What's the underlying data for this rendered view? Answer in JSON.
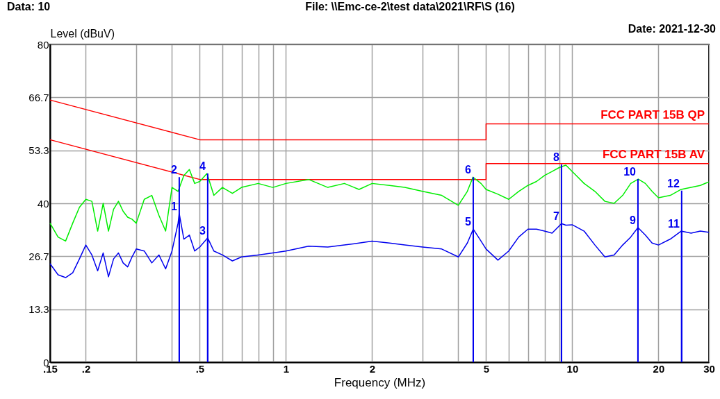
{
  "chart_data": {
    "type": "line",
    "xlabel": "Frequency (MHz)",
    "ylabel": "Level (dBuV)",
    "log": "x",
    "grid": true,
    "marker": "none",
    "line_style": "solid",
    "xlim": [
      0.15,
      30
    ],
    "ylim": [
      0,
      80
    ],
    "xticks": [
      {
        "value": 0.15,
        "label": ".15"
      },
      {
        "value": 0.2,
        "label": ".2"
      },
      {
        "value": 0.3,
        "label": null
      },
      {
        "value": 0.4,
        "label": null
      },
      {
        "value": 0.5,
        "label": ".5"
      },
      {
        "value": 0.6,
        "label": null
      },
      {
        "value": 0.7,
        "label": null
      },
      {
        "value": 0.8,
        "label": null
      },
      {
        "value": 0.9,
        "label": null
      },
      1,
      2,
      {
        "value": 3,
        "label": null
      },
      {
        "value": 4,
        "label": null
      },
      5,
      {
        "value": 6,
        "label": null
      },
      {
        "value": 7,
        "label": null
      },
      {
        "value": 8,
        "label": null
      },
      {
        "value": 9,
        "label": null
      },
      10,
      20,
      30
    ],
    "yticks": [
      0,
      13.3,
      26.7,
      40,
      53.3,
      66.7,
      80
    ],
    "series": [
      {
        "name": "FCC PART 15B QP",
        "color": "#ff0000",
        "x": [
          0.15,
          0.5,
          5,
          5,
          30
        ],
        "values": [
          66,
          56,
          56,
          60,
          60
        ]
      },
      {
        "name": "FCC PART 15B AV",
        "color": "#ff0000",
        "x": [
          0.15,
          0.5,
          5,
          5,
          30
        ],
        "values": [
          56,
          46,
          46,
          50,
          50
        ]
      },
      {
        "color": "#00ee00",
        "x": [
          0.15,
          0.16,
          0.17,
          0.18,
          0.19,
          0.2,
          0.21,
          0.22,
          0.23,
          0.24,
          0.25,
          0.26,
          0.27,
          0.28,
          0.29,
          0.3,
          0.32,
          0.34,
          0.36,
          0.38,
          0.4,
          0.42,
          0.44,
          0.46,
          0.48,
          0.5,
          0.53,
          0.56,
          0.6,
          0.65,
          0.7,
          0.8,
          0.9,
          1,
          1.2,
          1.4,
          1.6,
          1.8,
          2,
          2.3,
          2.6,
          3,
          3.5,
          4,
          4.3,
          4.5,
          4.8,
          5,
          5.5,
          6,
          6.5,
          7,
          7.5,
          8,
          8.5,
          9,
          9.5,
          10,
          11,
          12,
          13,
          14,
          15,
          16,
          17,
          18,
          19,
          20,
          22,
          24,
          26,
          28,
          30
        ],
        "values": [
          35,
          31.5,
          30.5,
          35,
          39,
          41,
          40.5,
          33,
          40,
          33,
          38.5,
          40.5,
          38,
          36.5,
          36,
          35,
          41,
          42,
          37,
          33,
          44,
          43,
          47,
          48.5,
          45,
          45.5,
          47.5,
          42,
          44,
          42.5,
          44,
          45,
          44,
          45,
          46,
          44,
          45,
          43.5,
          45,
          44.5,
          44,
          43,
          42,
          39.5,
          43,
          46.6,
          45,
          43.5,
          42.3,
          41,
          43,
          44.5,
          45.5,
          47,
          48,
          49,
          49.6,
          48,
          45,
          43,
          40.5,
          40,
          42,
          45,
          46.1,
          45,
          43,
          41.4,
          42,
          43.5,
          44,
          44.5,
          45.4
        ]
      },
      {
        "color": "#0000ee",
        "x": [
          0.15,
          0.16,
          0.17,
          0.18,
          0.19,
          0.2,
          0.21,
          0.22,
          0.23,
          0.24,
          0.25,
          0.26,
          0.27,
          0.28,
          0.29,
          0.3,
          0.32,
          0.34,
          0.36,
          0.38,
          0.4,
          0.42,
          0.424,
          0.44,
          0.46,
          0.48,
          0.5,
          0.533,
          0.56,
          0.6,
          0.65,
          0.7,
          0.8,
          0.9,
          1,
          1.2,
          1.4,
          1.6,
          1.8,
          2,
          2.3,
          2.6,
          3,
          3.5,
          4,
          4.3,
          4.51,
          4.8,
          5,
          5.5,
          6,
          6.5,
          7,
          7.5,
          8,
          8.5,
          9.17,
          9.5,
          10,
          11,
          12,
          13,
          14,
          15,
          16,
          16.96,
          18,
          19,
          20,
          22,
          24,
          26,
          28,
          30
        ],
        "values": [
          24.8,
          22,
          21.3,
          22.5,
          26,
          29.5,
          27,
          23,
          27.5,
          21.5,
          26,
          27.5,
          25,
          24,
          26.5,
          28.5,
          28,
          25,
          27,
          23.5,
          28,
          35,
          37.4,
          31,
          32,
          28,
          29,
          31.3,
          28,
          27,
          25.5,
          26.5,
          27,
          27.5,
          28,
          29.2,
          29,
          29.5,
          30,
          30.5,
          30,
          29.5,
          29,
          28.5,
          26.5,
          30,
          33.5,
          30.5,
          28.5,
          25.7,
          28,
          31.5,
          33.5,
          33.5,
          33,
          32.5,
          34.9,
          34.5,
          34.6,
          33,
          29.5,
          26.5,
          27,
          29.5,
          31.5,
          33.9,
          32,
          30,
          29.5,
          31,
          33,
          32.5,
          33,
          32.7
        ]
      }
    ],
    "annotations": [
      "Data: 10",
      "File: \\\\Emc-ce-2\\test data\\2021\\RF\\S (16)",
      "Date: 2021-12-30",
      {
        "text": "1",
        "x": 0.424,
        "y": 37.4
      },
      {
        "text": "2",
        "x": 0.424,
        "y": 46.6
      },
      {
        "text": "3",
        "x": 0.533,
        "y": 31.3
      },
      {
        "text": "4",
        "x": 0.533,
        "y": 47.5
      },
      {
        "text": "5",
        "x": 4.51,
        "y": 33.5
      },
      {
        "text": "6",
        "x": 4.51,
        "y": 46.6
      },
      {
        "text": "7",
        "x": 9.17,
        "y": 34.9
      },
      {
        "text": "8",
        "x": 9.17,
        "y": 49.8
      },
      {
        "text": "9",
        "x": 16.96,
        "y": 33.9
      },
      {
        "text": "10",
        "x": 16.96,
        "y": 46.1
      },
      {
        "text": "11",
        "x": 24.1,
        "y": 33
      },
      {
        "text": "12",
        "x": 24.1,
        "y": 43.2
      }
    ]
  }
}
